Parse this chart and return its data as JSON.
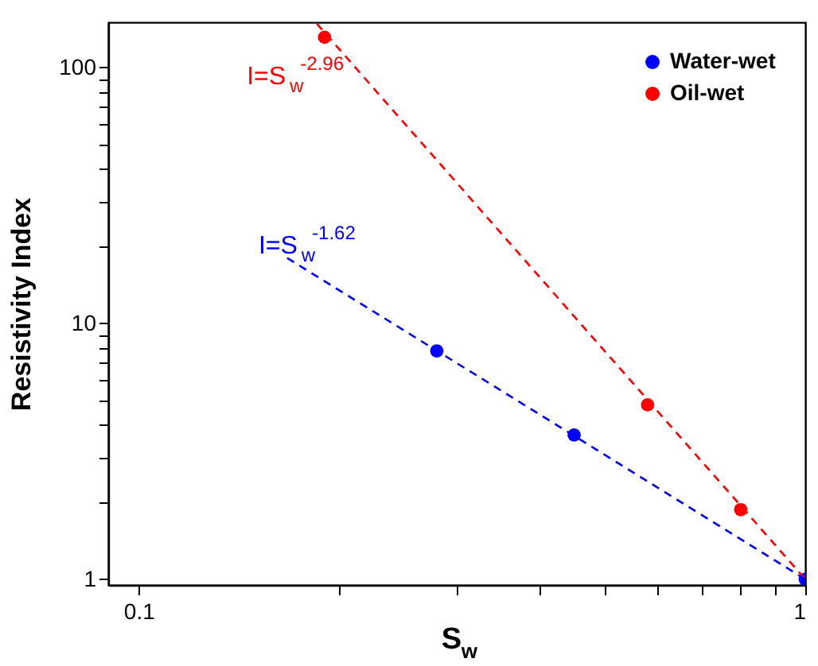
{
  "chart_data": {
    "type": "scatter",
    "xlabel": "S$_{w}$",
    "ylabel": "Resistivity Index",
    "log": "xy",
    "xlim": [
      0.09,
      1
    ],
    "ylim": [
      0.95,
      150
    ],
    "xticks": [
      0.1,
      {
        "value": 0.2,
        "label": null
      },
      {
        "value": 0.3,
        "label": null
      },
      {
        "value": 0.4,
        "label": null
      },
      {
        "value": 0.5,
        "label": null
      },
      {
        "value": 0.6,
        "label": null
      },
      {
        "value": 0.7,
        "label": null
      },
      {
        "value": 0.8,
        "label": null
      },
      {
        "value": 0.9,
        "label": null
      },
      1
    ],
    "yticks": [
      1,
      {
        "value": 2,
        "label": null
      },
      {
        "value": 3,
        "label": null
      },
      {
        "value": 4,
        "label": null
      },
      {
        "value": 5,
        "label": null
      },
      {
        "value": 6,
        "label": null
      },
      {
        "value": 7,
        "label": null
      },
      {
        "value": 8,
        "label": null
      },
      {
        "value": 9,
        "label": null
      },
      10,
      {
        "value": 20,
        "label": null
      },
      {
        "value": 30,
        "label": null
      },
      {
        "value": 40,
        "label": null
      },
      {
        "value": 50,
        "label": null
      },
      {
        "value": 60,
        "label": null
      },
      {
        "value": 70,
        "label": null
      },
      {
        "value": 80,
        "label": null
      },
      {
        "value": 90,
        "label": null
      },
      100
    ],
    "grid": false,
    "legend": "top right",
    "marker": "circle",
    "series": [
      {
        "name": "Water-wet",
        "color": "#0000ff",
        "x": [
          0.28,
          0.45,
          1
        ],
        "values": [
          7.8,
          3.66,
          1
        ]
      },
      {
        "name": "Oil-wet",
        "color": "#ff0000",
        "x": [
          0.19,
          0.58,
          0.8
        ],
        "values": [
          131,
          4.8,
          1.87
        ]
      },
      {
        "type": "line",
        "color": "#ff0000",
        "line_style": "dashed",
        "marker": "none",
        "x": [
          0.185,
          1
        ],
        "values": [
          148,
          1
        ]
      },
      {
        "type": "line",
        "color": "#0000ff",
        "line_style": "dashed",
        "marker": "none",
        "x": [
          0.167,
          1
        ],
        "values": [
          18,
          1
        ]
      }
    ],
    "annotations": [
      "I=S$_{w}$$^{-2.96}$",
      "I=S$_{w}$$^{-1.62}$"
    ]
  }
}
